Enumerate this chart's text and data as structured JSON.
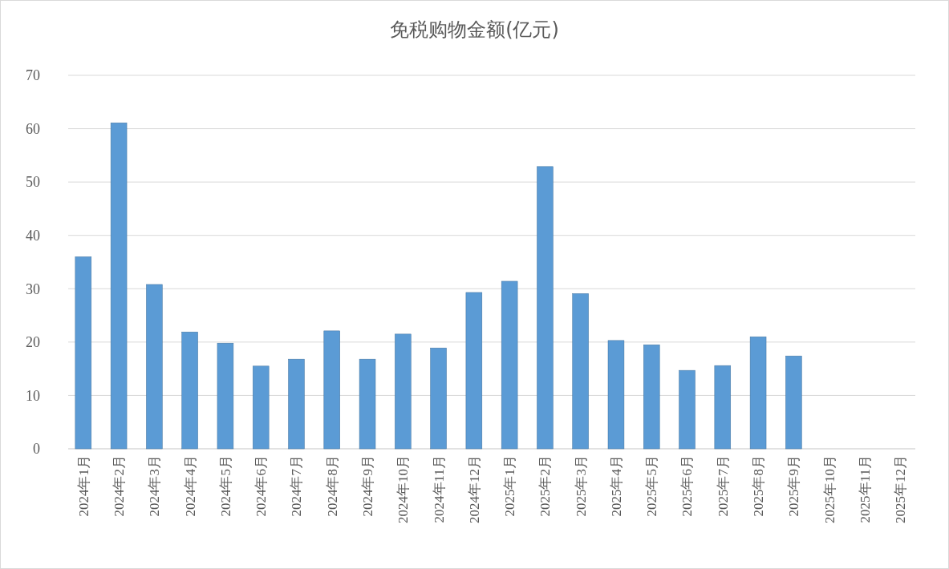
{
  "chart_data": {
    "type": "bar",
    "title": "免税购物金额(亿元)",
    "categories": [
      "2024年1月",
      "2024年2月",
      "2024年3月",
      "2024年4月",
      "2024年5月",
      "2024年6月",
      "2024年7月",
      "2024年8月",
      "2024年9月",
      "2024年10月",
      "2024年11月",
      "2024年12月",
      "2025年1月",
      "2025年2月",
      "2025年3月",
      "2025年4月",
      "2025年5月",
      "2025年6月",
      "2025年7月",
      "2025年8月",
      "2025年9月",
      "2025年10月",
      "2025年11月",
      "2025年12月"
    ],
    "values": [
      36,
      61.1,
      30.8,
      21.9,
      19.8,
      15.5,
      16.8,
      22.1,
      16.8,
      21.5,
      18.9,
      29.3,
      31.4,
      52.9,
      29.1,
      20.3,
      19.5,
      14.7,
      15.6,
      21,
      17.4,
      null,
      null,
      null
    ],
    "color": "#5b9bd5",
    "ylim": [
      0,
      70
    ],
    "yticks": [
      0,
      10,
      20,
      30,
      40,
      50,
      60,
      70
    ],
    "grid": "y"
  }
}
